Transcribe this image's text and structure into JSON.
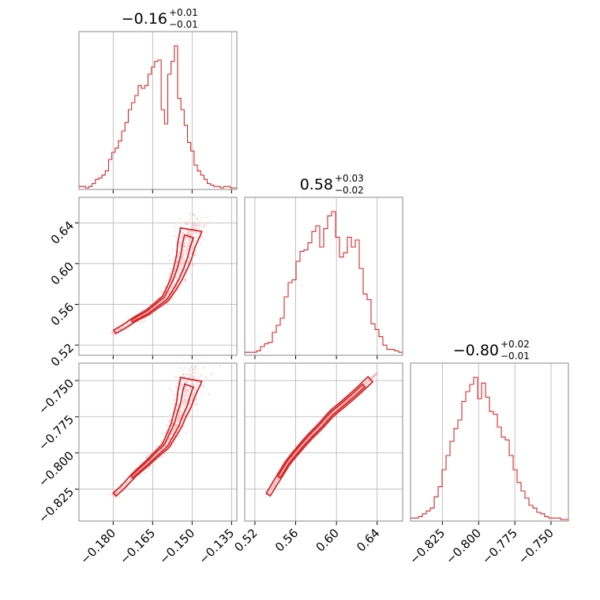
{
  "chart_data": {
    "type": "corner",
    "colors": {
      "main": "#d62728",
      "fill_inner": "#f3a7ab",
      "fill_outer": "#fbe1e3",
      "scatter": "#f2b8bc"
    },
    "grid": true,
    "parameters": [
      {
        "title_value": "−0.16",
        "title_plus": "+0.01",
        "title_minus": "−0.01",
        "median": -0.16,
        "err_plus": 0.01,
        "err_minus": 0.01,
        "range": [
          -0.193,
          -0.133
        ],
        "ticks": [
          -0.18,
          -0.165,
          -0.15,
          -0.135
        ],
        "tick_labels": [
          "−0.180",
          "−0.165",
          "−0.150",
          "−0.135"
        ]
      },
      {
        "title_value": "0.58",
        "title_plus": "+0.03",
        "title_minus": "−0.02",
        "median": 0.58,
        "err_plus": 0.03,
        "err_minus": 0.02,
        "range": [
          0.51,
          0.665
        ],
        "ticks": [
          0.52,
          0.56,
          0.6,
          0.64
        ],
        "tick_labels": [
          "0.52",
          "0.56",
          "0.60",
          "0.64"
        ]
      },
      {
        "title_value": "−0.80",
        "title_plus": "+0.02",
        "title_minus": "−0.01",
        "median": -0.8,
        "err_plus": 0.02,
        "err_minus": 0.01,
        "range": [
          -0.847,
          -0.738
        ],
        "ticks": [
          -0.825,
          -0.8,
          -0.775,
          -0.75
        ],
        "tick_labels": [
          "−0.825",
          "−0.800",
          "−0.775",
          "−0.750"
        ]
      }
    ],
    "histograms": [
      [
        0.01,
        0.01,
        0.0,
        0.01,
        0.03,
        0.06,
        0.07,
        0.09,
        0.12,
        0.2,
        0.25,
        0.28,
        0.33,
        0.4,
        0.46,
        0.55,
        0.6,
        0.65,
        0.72,
        0.7,
        0.72,
        0.8,
        0.85,
        0.89,
        0.9,
        0.55,
        0.45,
        0.8,
        0.89,
        1.0,
        0.63,
        0.55,
        0.44,
        0.32,
        0.26,
        0.16,
        0.12,
        0.09,
        0.06,
        0.03,
        0.02,
        0.01,
        0.01,
        0.0,
        0.01,
        0.01,
        0.0,
        0.0
      ],
      [
        0.01,
        0.01,
        0.01,
        0.02,
        0.05,
        0.07,
        0.08,
        0.15,
        0.2,
        0.25,
        0.4,
        0.5,
        0.52,
        0.65,
        0.72,
        0.73,
        0.78,
        0.86,
        0.9,
        0.75,
        0.88,
        0.97,
        1.0,
        0.82,
        0.68,
        0.71,
        0.82,
        0.75,
        0.8,
        0.6,
        0.42,
        0.38,
        0.21,
        0.17,
        0.12,
        0.06,
        0.03,
        0.03,
        0.02,
        0.01
      ],
      [
        0.01,
        0.01,
        0.02,
        0.04,
        0.06,
        0.08,
        0.16,
        0.23,
        0.35,
        0.45,
        0.55,
        0.64,
        0.7,
        0.83,
        0.9,
        0.95,
        1.0,
        0.85,
        0.96,
        0.86,
        0.76,
        0.74,
        0.65,
        0.58,
        0.56,
        0.45,
        0.35,
        0.26,
        0.2,
        0.15,
        0.1,
        0.08,
        0.05,
        0.04,
        0.02,
        0.01,
        0.01,
        0.01,
        0.0,
        0.0
      ]
    ],
    "ridges": [
      [
        [
          -0.1805,
          0.5315,
          -0.8305
        ],
        [
          -0.176,
          0.538,
          -0.823
        ],
        [
          -0.172,
          0.545,
          -0.815
        ],
        [
          -0.167,
          0.552,
          -0.807
        ],
        [
          -0.163,
          0.56,
          -0.8
        ],
        [
          -0.16,
          0.566,
          -0.795
        ],
        [
          -0.158,
          0.575,
          -0.788
        ],
        [
          -0.156,
          0.585,
          -0.781
        ],
        [
          -0.1545,
          0.595,
          -0.773
        ],
        [
          -0.153,
          0.607,
          -0.766
        ],
        [
          -0.152,
          0.62,
          -0.758
        ],
        [
          -0.1505,
          0.632,
          -0.75
        ],
        [
          -0.15,
          0.64,
          -0.745
        ]
      ]
    ]
  }
}
